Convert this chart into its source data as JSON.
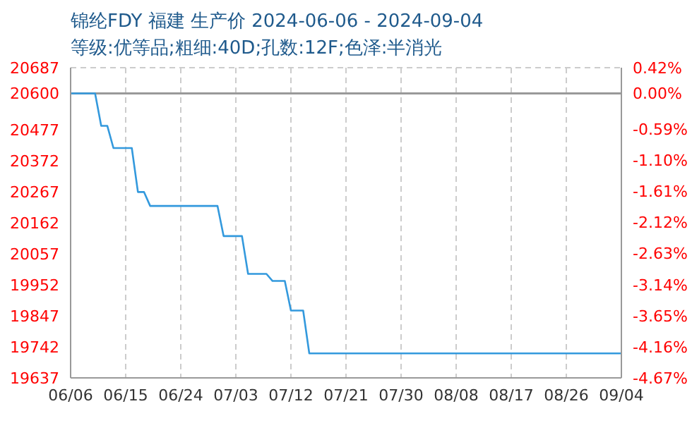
{
  "chart_data": {
    "type": "line",
    "title": "锦纶FDY 福建 生产价 2024-06-06 - 2024-09-04",
    "subtitle": "等级:优等品;粗细:40D;孔数:12F;色泽:半消光",
    "x": [
      "2024-06-06",
      "2024-06-10",
      "2024-06-11",
      "2024-06-12",
      "2024-06-13",
      "2024-06-16",
      "2024-06-17",
      "2024-06-18",
      "2024-06-19",
      "2024-06-30",
      "2024-07-01",
      "2024-07-04",
      "2024-07-05",
      "2024-07-08",
      "2024-07-09",
      "2024-07-11",
      "2024-07-12",
      "2024-07-14",
      "2024-07-15",
      "2024-09-04"
    ],
    "series": [
      {
        "color": "#3399dd",
        "values": [
          20600,
          20600,
          20490,
          20490,
          20415,
          20415,
          20266,
          20266,
          20219,
          20219,
          20117,
          20117,
          19989,
          19989,
          19965,
          19965,
          19865,
          19865,
          19720,
          19720
        ]
      }
    ],
    "xlim": [
      "2024-06-06",
      "2024-09-04"
    ],
    "xticks": [
      {
        "value": "2024-06-06",
        "label": "06/06"
      },
      {
        "value": "2024-06-15",
        "label": "06/15"
      },
      {
        "value": "2024-06-24",
        "label": "06/24"
      },
      {
        "value": "2024-07-03",
        "label": "07/03"
      },
      {
        "value": "2024-07-12",
        "label": "07/12"
      },
      {
        "value": "2024-07-21",
        "label": "07/21"
      },
      {
        "value": "2024-07-30",
        "label": "07/30"
      },
      {
        "value": "2024-08-08",
        "label": "08/08"
      },
      {
        "value": "2024-08-17",
        "label": "08/17"
      },
      {
        "value": "2024-08-26",
        "label": "08/26"
      },
      {
        "value": "2024-09-04",
        "label": "09/04"
      }
    ],
    "ylim": [
      19637,
      20687
    ],
    "yticks": [
      19637,
      19742,
      19847,
      19952,
      20057,
      20162,
      20267,
      20372,
      20477,
      20600,
      20687
    ],
    "y2lim": [
      -4.67,
      0.42
    ],
    "y2ticks": [
      {
        "value": -4.67,
        "label": "-4.67%"
      },
      {
        "value": -4.16,
        "label": "-4.16%"
      },
      {
        "value": -3.65,
        "label": "-3.65%"
      },
      {
        "value": -3.14,
        "label": "-3.14%"
      },
      {
        "value": -2.63,
        "label": "-2.63%"
      },
      {
        "value": -2.12,
        "label": "-2.12%"
      },
      {
        "value": -1.61,
        "label": "-1.61%"
      },
      {
        "value": -1.1,
        "label": "-1.10%"
      },
      {
        "value": -0.59,
        "label": "-0.59%"
      },
      {
        "value": 0,
        "label": "0.00%"
      },
      {
        "value": 0.42,
        "label": "0.42%"
      }
    ],
    "ref_lines": [
      {
        "axis": "y",
        "value": 20600,
        "color": "#999999"
      }
    ],
    "grid": true,
    "marker": "none",
    "line_style": "solid",
    "legend": false
  }
}
